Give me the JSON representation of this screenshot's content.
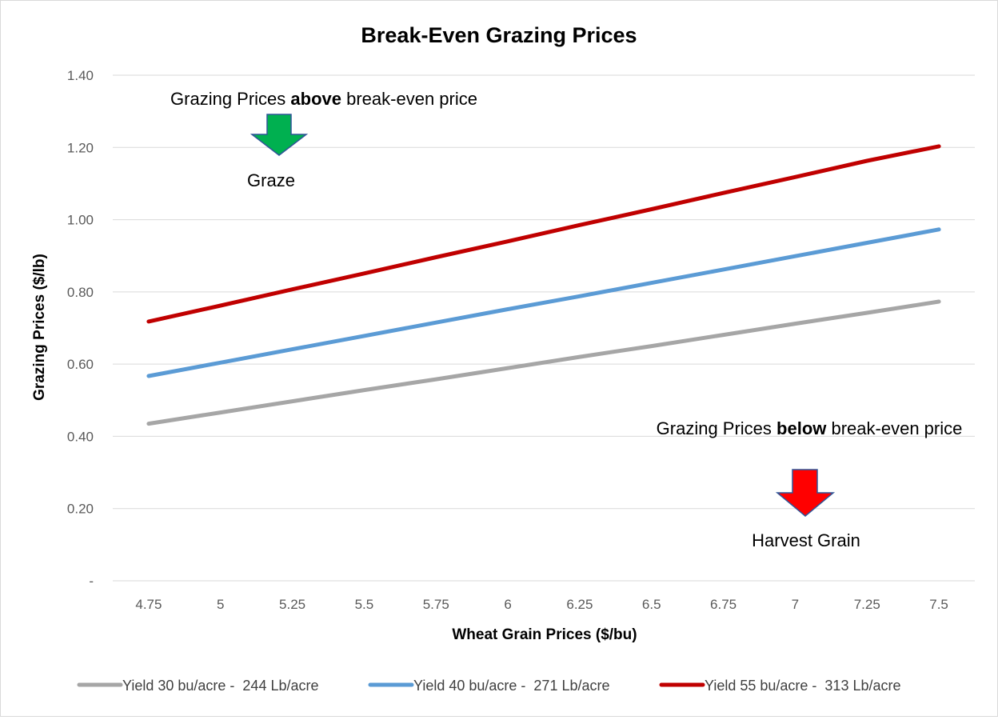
{
  "chart_data": {
    "type": "line",
    "title": "Break-Even Grazing Prices",
    "xlabel": "Wheat Grain Prices ($/bu)",
    "ylabel": "Grazing Prices ($/lb)",
    "x": [
      "4.75",
      "5",
      "5.25",
      "5.5",
      "5.75",
      "6",
      "6.25",
      "6.5",
      "6.75",
      "7",
      "7.25",
      "7.5"
    ],
    "ylim": [
      0,
      1.4
    ],
    "yticks": [
      0,
      0.2,
      0.4,
      0.6,
      0.8,
      1.0,
      1.2,
      1.4
    ],
    "ytick_labels": [
      "-",
      "0.20",
      "0.40",
      "0.60",
      "0.80",
      "1.00",
      "1.20",
      "1.40"
    ],
    "grid": true,
    "legend_position": "bottom",
    "series": [
      {
        "name": "Yield 30 bu/acre -  244 Lb/acre",
        "color": "#a6a6a6",
        "values": [
          0.435,
          0.466,
          0.497,
          0.528,
          0.558,
          0.589,
          0.62,
          0.65,
          0.681,
          0.712,
          0.742,
          0.773
        ]
      },
      {
        "name": "Yield 40 bu/acre -  271 Lb/acre",
        "color": "#5b9bd5",
        "values": [
          0.567,
          0.604,
          0.641,
          0.678,
          0.715,
          0.752,
          0.788,
          0.825,
          0.862,
          0.899,
          0.936,
          0.973
        ]
      },
      {
        "name": "Yield 55 bu/acre -  313 Lb/acre",
        "color": "#c00000",
        "values": [
          0.718,
          0.762,
          0.807,
          0.851,
          0.896,
          0.94,
          0.985,
          1.029,
          1.074,
          1.118,
          1.163,
          1.203
        ]
      }
    ],
    "annotations": {
      "above": {
        "pre": "Grazing Prices ",
        "bold": "above",
        "post": " break-even price"
      },
      "graze": "Graze",
      "below": {
        "pre": "Grazing Prices ",
        "bold": "below",
        "post": " break-even price"
      },
      "harvest": "Harvest Grain"
    },
    "arrow_colors": {
      "graze": "#00b050",
      "harvest": "#ff0000"
    }
  }
}
